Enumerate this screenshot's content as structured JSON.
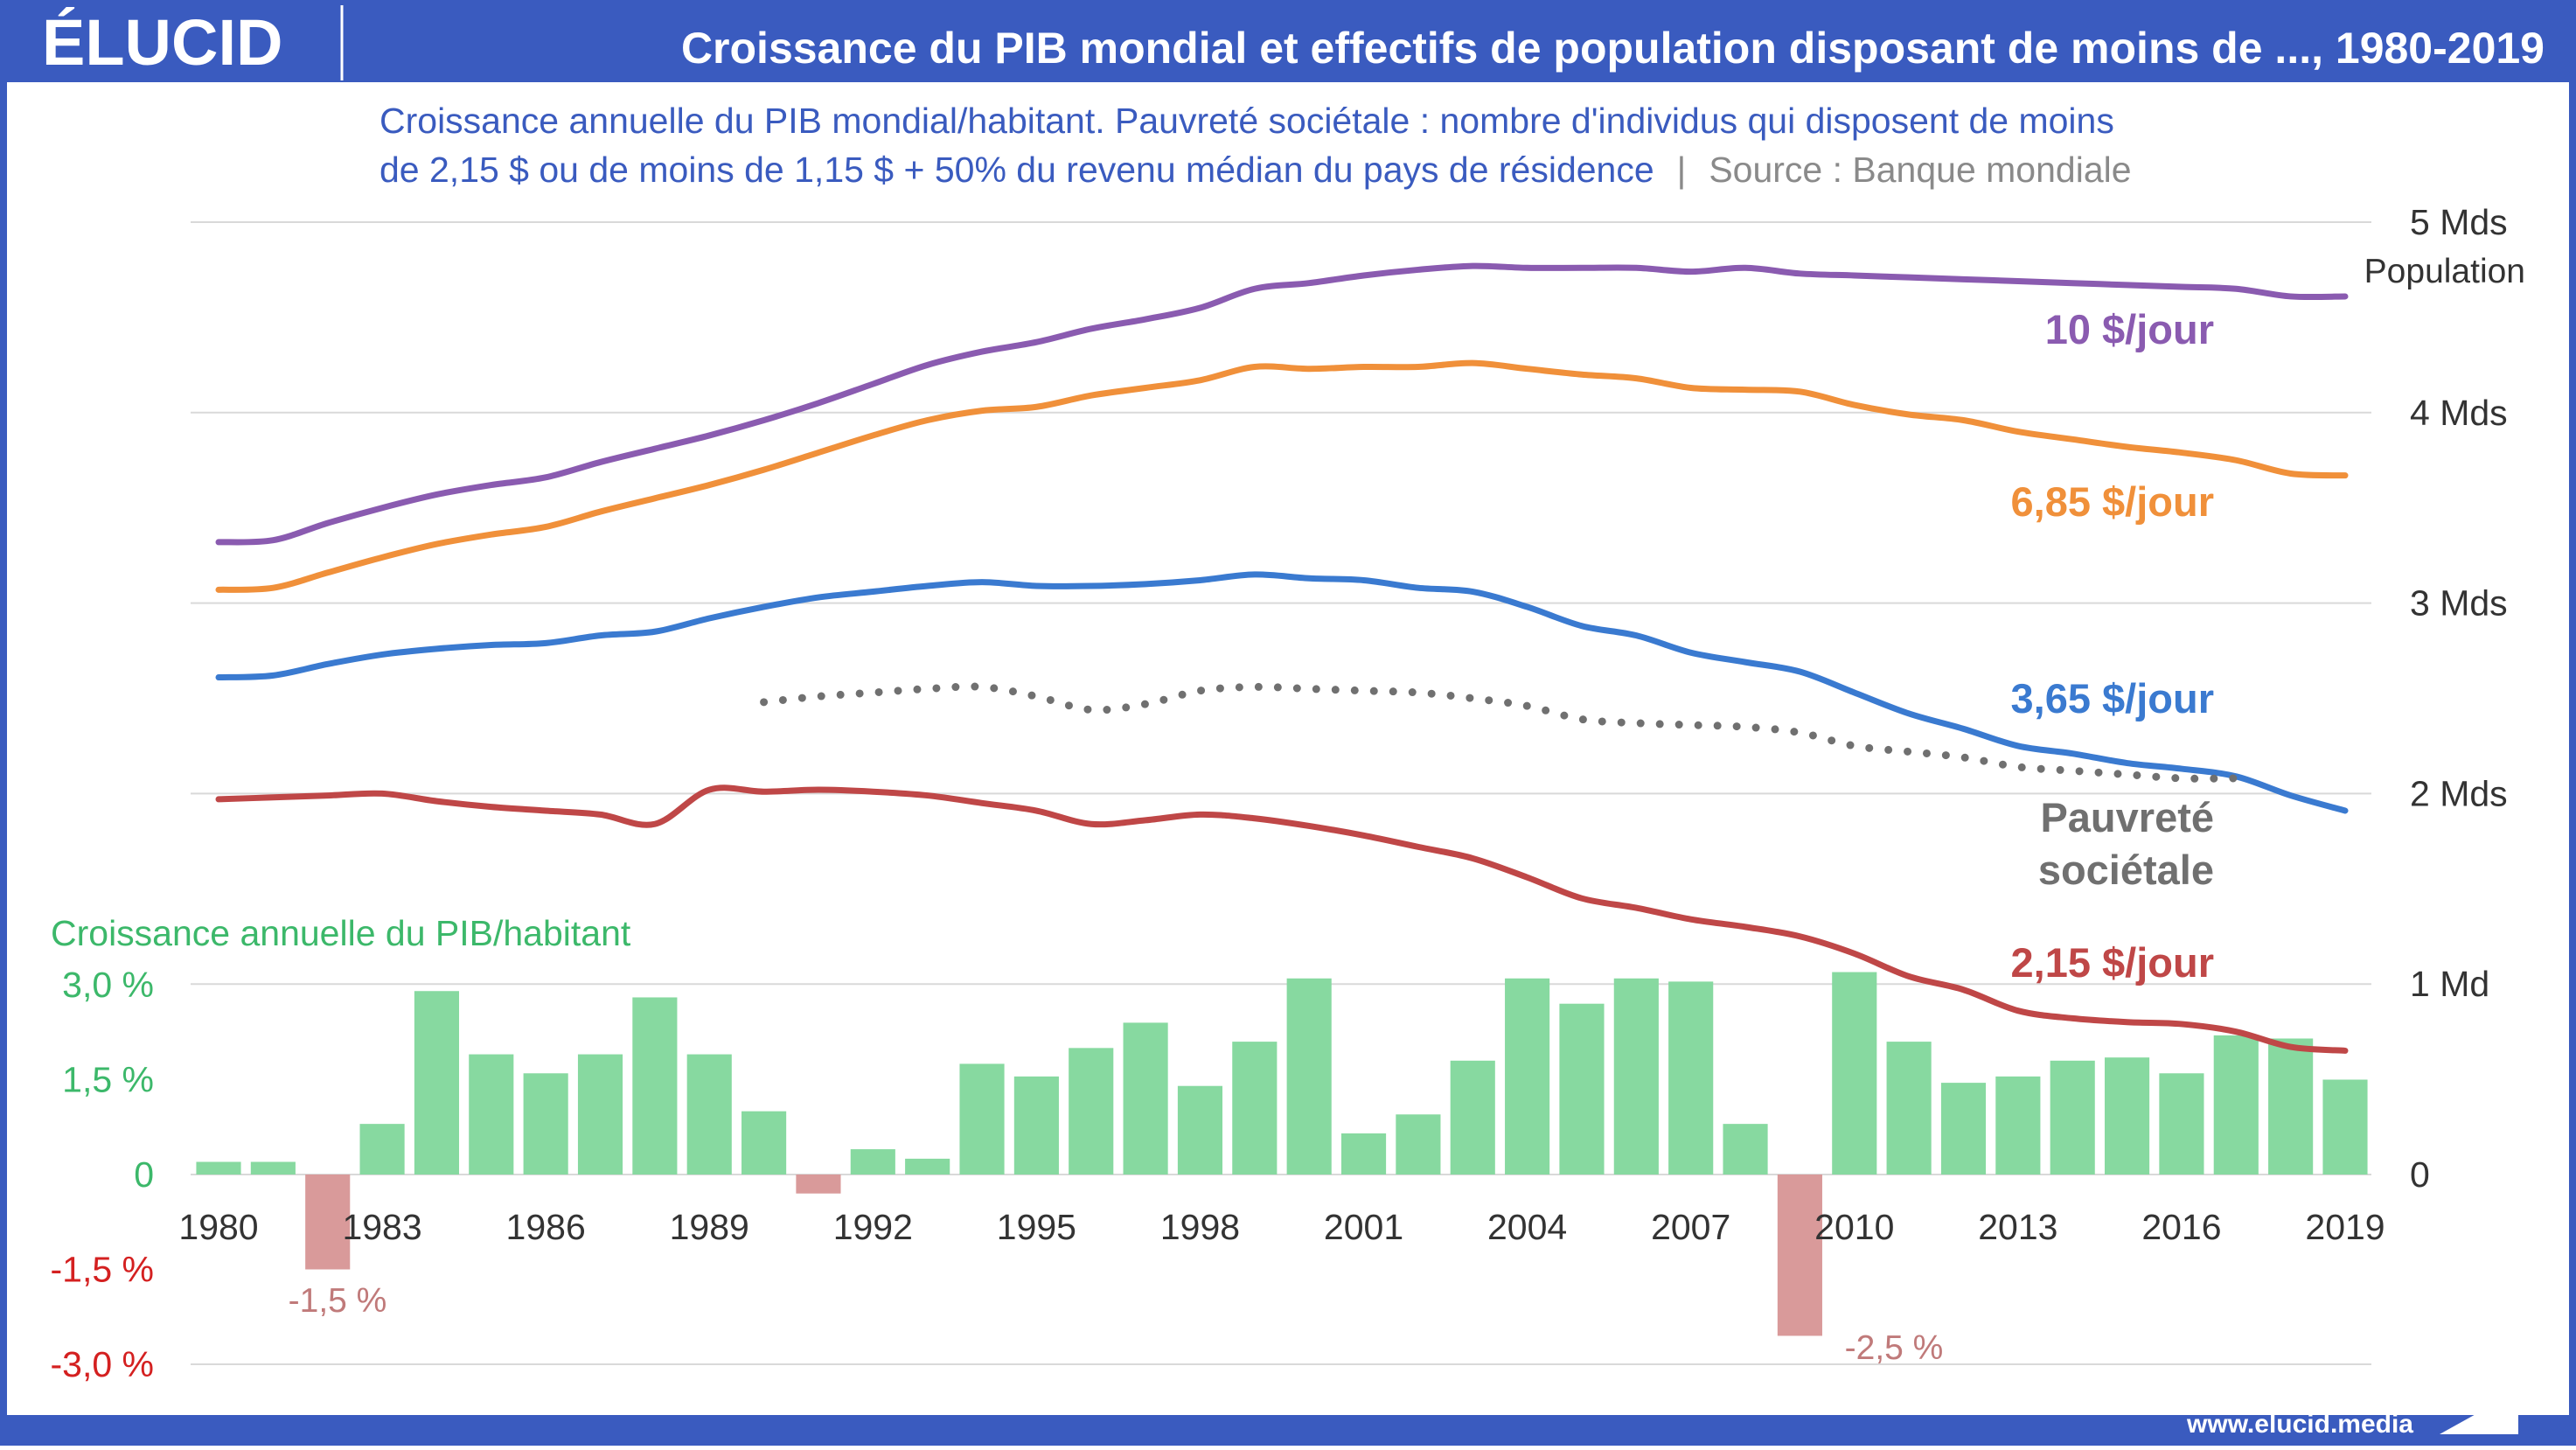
{
  "brand": {
    "logo": "ÉLUCID",
    "website": "www.elucid.media"
  },
  "header": {
    "title": "Croissance du PIB mondial et effectifs de population disposant de moins de ..., 1980-2019"
  },
  "subtitle": {
    "line1": "Croissance annuelle du PIB mondial/habitant. Pauvreté sociétale : nombre d'individus qui disposent de moins",
    "line2": "de 2,15 $ ou de moins de 1,15 $ + 50% du revenu médian du pays de résidence",
    "separator": "|",
    "source": "Source : Banque mondiale"
  },
  "colors": {
    "header_bg": "#3a5bbf",
    "subtitle": "#3a5bbf",
    "source": "#8a8a8a",
    "grid": "#d9d9d9",
    "ten": "#8a5bb0",
    "six85": "#f0903a",
    "three65": "#3a7ad0",
    "two15": "#bf4747",
    "poverty": "#707070",
    "bar_pos": "#87d9a0",
    "bar_neg": "#d99a9a",
    "gdp_label": "#3cb86a",
    "neg_tick": "#d42020",
    "neg_data": "#c07a7a",
    "axis_text": "#333333"
  },
  "chart_data": {
    "type": "line+bar",
    "x_ticks": [
      1980,
      1983,
      1986,
      1989,
      1992,
      1995,
      1998,
      2001,
      2004,
      2007,
      2010,
      2013,
      2016,
      2019
    ],
    "x_range": [
      1980,
      2019
    ],
    "right_axis": {
      "ticks": [
        {
          "value": 5,
          "label": "5 Mds"
        },
        {
          "value": 4,
          "label": "4 Mds"
        },
        {
          "value": 3,
          "label": "3 Mds"
        },
        {
          "value": 2,
          "label": "2 Mds"
        },
        {
          "value": 1,
          "label": "1 Md"
        },
        {
          "value": 0,
          "label": "0"
        }
      ],
      "range": [
        0,
        5
      ],
      "title": "Population"
    },
    "left_axis": {
      "ticks": [
        {
          "value": 3.0,
          "label": "3,0 %",
          "color": "#3cb86a"
        },
        {
          "value": 1.5,
          "label": "1,5 %",
          "color": "#3cb86a"
        },
        {
          "value": 0,
          "label": "0",
          "color": "#3cb86a"
        },
        {
          "value": -1.5,
          "label": "-1,5 %",
          "color": "#d42020"
        },
        {
          "value": -3.0,
          "label": "-3,0 %",
          "color": "#d42020"
        }
      ],
      "range": [
        -3,
        3
      ],
      "title": "Croissance annuelle du PIB/habitant"
    },
    "series": [
      {
        "name": "10 $/jour",
        "color_key": "ten",
        "x": [
          1980,
          1981,
          1982,
          1983,
          1984,
          1985,
          1986,
          1987,
          1988,
          1989,
          1990,
          1991,
          1992,
          1993,
          1994,
          1995,
          1996,
          1997,
          1998,
          1999,
          2000,
          2001,
          2002,
          2003,
          2004,
          2005,
          2006,
          2007,
          2008,
          2009,
          2010,
          2011,
          2012,
          2013,
          2014,
          2015,
          2016,
          2017,
          2018,
          2019
        ],
        "values": [
          3.32,
          3.33,
          3.42,
          3.5,
          3.57,
          3.62,
          3.66,
          3.74,
          3.81,
          3.88,
          3.96,
          4.05,
          4.15,
          4.25,
          4.32,
          4.37,
          4.44,
          4.49,
          4.55,
          4.65,
          4.68,
          4.72,
          4.75,
          4.77,
          4.76,
          4.76,
          4.76,
          4.74,
          4.76,
          4.73,
          4.72,
          4.71,
          4.7,
          4.69,
          4.68,
          4.67,
          4.66,
          4.65,
          4.61,
          4.61
        ]
      },
      {
        "name": "6,85 $/jour",
        "color_key": "six85",
        "x": [
          1980,
          1981,
          1982,
          1983,
          1984,
          1985,
          1986,
          1987,
          1988,
          1989,
          1990,
          1991,
          1992,
          1993,
          1994,
          1995,
          1996,
          1997,
          1998,
          1999,
          2000,
          2001,
          2002,
          2003,
          2004,
          2005,
          2006,
          2007,
          2008,
          2009,
          2010,
          2011,
          2012,
          2013,
          2014,
          2015,
          2016,
          2017,
          2018,
          2019
        ],
        "values": [
          3.07,
          3.08,
          3.16,
          3.24,
          3.31,
          3.36,
          3.4,
          3.48,
          3.55,
          3.62,
          3.7,
          3.79,
          3.88,
          3.96,
          4.01,
          4.03,
          4.09,
          4.13,
          4.17,
          4.24,
          4.23,
          4.24,
          4.24,
          4.26,
          4.23,
          4.2,
          4.18,
          4.13,
          4.12,
          4.11,
          4.04,
          3.99,
          3.96,
          3.9,
          3.86,
          3.82,
          3.79,
          3.75,
          3.68,
          3.67
        ]
      },
      {
        "name": "3,65 $/jour",
        "color_key": "three65",
        "x": [
          1980,
          1981,
          1982,
          1983,
          1984,
          1985,
          1986,
          1987,
          1988,
          1989,
          1990,
          1991,
          1992,
          1993,
          1994,
          1995,
          1996,
          1997,
          1998,
          1999,
          2000,
          2001,
          2002,
          2003,
          2004,
          2005,
          2006,
          2007,
          2008,
          2009,
          2010,
          2011,
          2012,
          2013,
          2014,
          2015,
          2016,
          2017,
          2018,
          2019
        ],
        "values": [
          2.61,
          2.62,
          2.68,
          2.73,
          2.76,
          2.78,
          2.79,
          2.83,
          2.85,
          2.92,
          2.98,
          3.03,
          3.06,
          3.09,
          3.11,
          3.09,
          3.09,
          3.1,
          3.12,
          3.15,
          3.13,
          3.12,
          3.08,
          3.06,
          2.98,
          2.88,
          2.83,
          2.74,
          2.69,
          2.64,
          2.53,
          2.42,
          2.34,
          2.25,
          2.21,
          2.16,
          2.13,
          2.09,
          1.99,
          1.91
        ]
      },
      {
        "name": "2,15 $/jour",
        "color_key": "two15",
        "x": [
          1980,
          1981,
          1982,
          1983,
          1984,
          1985,
          1986,
          1987,
          1988,
          1989,
          1990,
          1991,
          1992,
          1993,
          1994,
          1995,
          1996,
          1997,
          1998,
          1999,
          2000,
          2001,
          2002,
          2003,
          2004,
          2005,
          2006,
          2007,
          2008,
          2009,
          2010,
          2011,
          2012,
          2013,
          2014,
          2015,
          2016,
          2017,
          2018,
          2019
        ],
        "values": [
          1.97,
          1.98,
          1.99,
          2.0,
          1.96,
          1.93,
          1.91,
          1.89,
          1.84,
          2.02,
          2.01,
          2.02,
          2.01,
          1.99,
          1.95,
          1.91,
          1.84,
          1.86,
          1.89,
          1.87,
          1.83,
          1.78,
          1.72,
          1.66,
          1.56,
          1.45,
          1.4,
          1.34,
          1.3,
          1.25,
          1.16,
          1.04,
          0.97,
          0.86,
          0.82,
          0.8,
          0.79,
          0.75,
          0.67,
          0.65
        ]
      },
      {
        "name": "Pauvreté sociétale",
        "color_key": "poverty",
        "style": "dotted",
        "x": [
          1990,
          1991,
          1992,
          1993,
          1994,
          1995,
          1996,
          1997,
          1998,
          1999,
          2000,
          2001,
          2002,
          2003,
          2004,
          2005,
          2006,
          2007,
          2008,
          2009,
          2010,
          2011,
          2012,
          2013,
          2014,
          2015,
          2016,
          2017
        ],
        "values": [
          2.48,
          2.51,
          2.53,
          2.55,
          2.56,
          2.51,
          2.44,
          2.47,
          2.54,
          2.56,
          2.55,
          2.54,
          2.53,
          2.5,
          2.46,
          2.39,
          2.37,
          2.36,
          2.35,
          2.32,
          2.25,
          2.22,
          2.19,
          2.14,
          2.12,
          2.1,
          2.08,
          2.08
        ]
      }
    ],
    "gdp_growth": {
      "name": "Croissance annuelle du PIB/habitant",
      "unit": "%",
      "x": [
        1980,
        1981,
        1982,
        1983,
        1984,
        1985,
        1986,
        1987,
        1988,
        1989,
        1990,
        1991,
        1992,
        1993,
        1994,
        1995,
        1996,
        1997,
        1998,
        1999,
        2000,
        2001,
        2002,
        2003,
        2004,
        2005,
        2006,
        2007,
        2008,
        2009,
        2010,
        2011,
        2012,
        2013,
        2014,
        2015,
        2016,
        2017,
        2018,
        2019
      ],
      "values": [
        0.2,
        0.2,
        -1.5,
        0.8,
        2.9,
        1.9,
        1.6,
        1.9,
        2.8,
        1.9,
        1.0,
        -0.3,
        0.4,
        0.25,
        1.75,
        1.55,
        2.0,
        2.4,
        1.4,
        2.1,
        3.1,
        0.65,
        0.95,
        1.8,
        3.1,
        2.7,
        3.1,
        3.05,
        0.8,
        -2.55,
        3.2,
        2.1,
        1.45,
        1.55,
        1.8,
        1.85,
        1.6,
        2.2,
        2.15,
        1.5
      ]
    },
    "annotations": [
      {
        "text": "-1,5 %",
        "year": 1982,
        "value": -1.5
      },
      {
        "text": "-2,5 %",
        "year": 2009,
        "value": -2.55
      }
    ],
    "series_labels": [
      {
        "text": "10 $/jour",
        "color_key": "ten"
      },
      {
        "text": "6,85 $/jour",
        "color_key": "six85"
      },
      {
        "text": "3,65 $/jour",
        "color_key": "three65"
      },
      {
        "text": "2,15 $/jour",
        "color_key": "two15"
      },
      {
        "text": "Pauvreté",
        "color_key": "poverty"
      },
      {
        "text": "sociétale",
        "color_key": "poverty"
      }
    ],
    "grid": true
  }
}
